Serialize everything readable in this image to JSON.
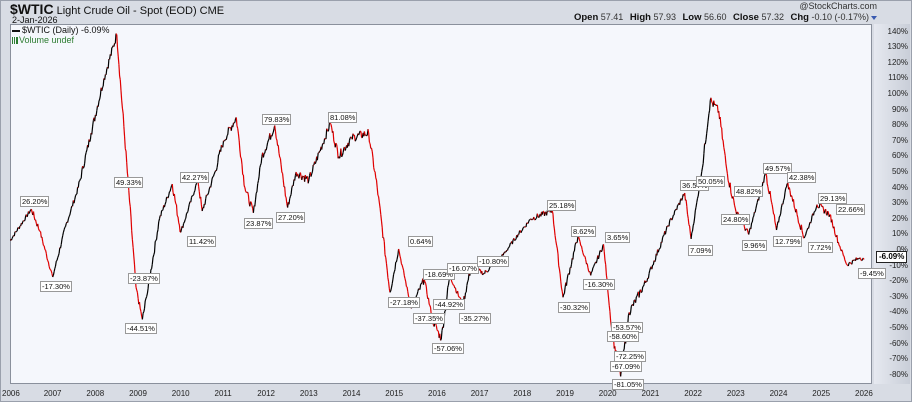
{
  "header": {
    "symbol": "$WTIC",
    "title": "Light Crude Oil - Spot (EOD) CME",
    "date": "2-Jan-2026",
    "credit": "@StockCharts.com",
    "ohlc": {
      "open_label": "Open",
      "open": "57.41",
      "high_label": "High",
      "high": "57.93",
      "low_label": "Low",
      "low": "56.60",
      "close_label": "Close",
      "close": "57.32",
      "chg_label": "Chg",
      "chg": "-0.10 (-0.17%)"
    }
  },
  "legend": {
    "series": "$WTIC (Daily) -6.09%",
    "volume": "Volume undef"
  },
  "last_value_tag": "-6.09%",
  "colors": {
    "line_up": "#000000",
    "line_down": "#e00000",
    "plot_bg": "#f5f7fc",
    "frame": "#d8dce4"
  },
  "chart_data": {
    "type": "line",
    "title": "$WTIC Light Crude Oil - Spot (EOD) CME",
    "subtitle": "2-Jan-2026",
    "xlabel": "",
    "ylabel": "% change",
    "x_ticks": [
      "2006",
      "2007",
      "2008",
      "2009",
      "2010",
      "2011",
      "2012",
      "2013",
      "2014",
      "2015",
      "2016",
      "2017",
      "2018",
      "2019",
      "2020",
      "2021",
      "2022",
      "2023",
      "2024",
      "2025",
      "2026"
    ],
    "y_ticks": [
      "140%",
      "130%",
      "120%",
      "110%",
      "100%",
      "90%",
      "80%",
      "70%",
      "60%",
      "50%",
      "40%",
      "30%",
      "20%",
      "10%",
      "0%",
      "-10%",
      "-20%",
      "-30%",
      "-40%",
      "-50%",
      "-60%",
      "-70%",
      "-80%"
    ],
    "ylim": [
      -85,
      145
    ],
    "grid": false,
    "legend_position": "top-left",
    "series": [
      {
        "name": "$WTIC (Daily)",
        "x": [
          2006.0,
          2006.5,
          2006.7,
          2007.0,
          2007.3,
          2007.6,
          2007.9,
          2008.2,
          2008.5,
          2008.75,
          2008.95,
          2009.1,
          2009.2,
          2009.5,
          2009.8,
          2010.0,
          2010.4,
          2010.5,
          2010.8,
          2011.0,
          2011.3,
          2011.5,
          2011.7,
          2011.9,
          2012.2,
          2012.5,
          2012.7,
          2013.0,
          2013.5,
          2013.7,
          2014.0,
          2014.4,
          2014.6,
          2014.9,
          2015.1,
          2015.4,
          2015.7,
          2015.9,
          2016.1,
          2016.3,
          2016.6,
          2016.8,
          2017.1,
          2017.5,
          2017.9,
          2018.2,
          2018.7,
          2018.95,
          2019.3,
          2019.6,
          2019.9,
          2020.1,
          2020.3,
          2020.5,
          2020.9,
          2021.4,
          2021.8,
          2021.95,
          2022.2,
          2022.4,
          2022.6,
          2022.8,
          2023.0,
          2023.3,
          2023.7,
          2023.95,
          2024.2,
          2024.3,
          2024.6,
          2024.9,
          2025.2,
          2025.4,
          2025.6,
          2025.9,
          2026.0
        ],
        "values": [
          6,
          26.2,
          12,
          -17.3,
          15,
          40,
          75,
          110,
          138,
          49.33,
          -23.87,
          -44.51,
          -30,
          20,
          42.27,
          11.42,
          45,
          25,
          50,
          70,
          85,
          40,
          23.87,
          60,
          79.83,
          27.2,
          50,
          45,
          81.08,
          60,
          72,
          75,
          40,
          -27.18,
          0.64,
          -37.35,
          -18.69,
          -44.92,
          -57.06,
          -16.07,
          -35.27,
          -10.8,
          -15,
          -5,
          10,
          20,
          25.18,
          -30.32,
          8.62,
          -16.3,
          3.65,
          -53.57,
          -81.05,
          -40,
          -20,
          15,
          36.57,
          7.09,
          50.05,
          96,
          89,
          48.82,
          24.8,
          9.96,
          49.57,
          12.79,
          42.38,
          35,
          7.72,
          29.13,
          22.66,
          5,
          -9.45,
          -5,
          -6.09
        ]
      }
    ],
    "annotations": [
      "26.20%",
      "-17.30%",
      "49.33%",
      "-23.87%",
      "-44.51%",
      "42.27%",
      "11.42%",
      "23.87%",
      "79.83%",
      "27.20%",
      "81.08%",
      "-27.18%",
      "0.64%",
      "-18.69%",
      "-37.35%",
      "-44.92%",
      "-57.06%",
      "-16.07%",
      "-35.27%",
      "-10.80%",
      "25.18%",
      "-30.32%",
      "8.62%",
      "-16.30%",
      "3.65%",
      "-53.57%",
      "-58.60%",
      "-72.25%",
      "-67.09%",
      "-81.05%",
      "36.57%",
      "7.09%",
      "50.05%",
      "48.82%",
      "24.80%",
      "9.96%",
      "49.57%",
      "12.79%",
      "42.38%",
      "7.72%",
      "29.13%",
      "22.66%",
      "-9.45%"
    ]
  }
}
